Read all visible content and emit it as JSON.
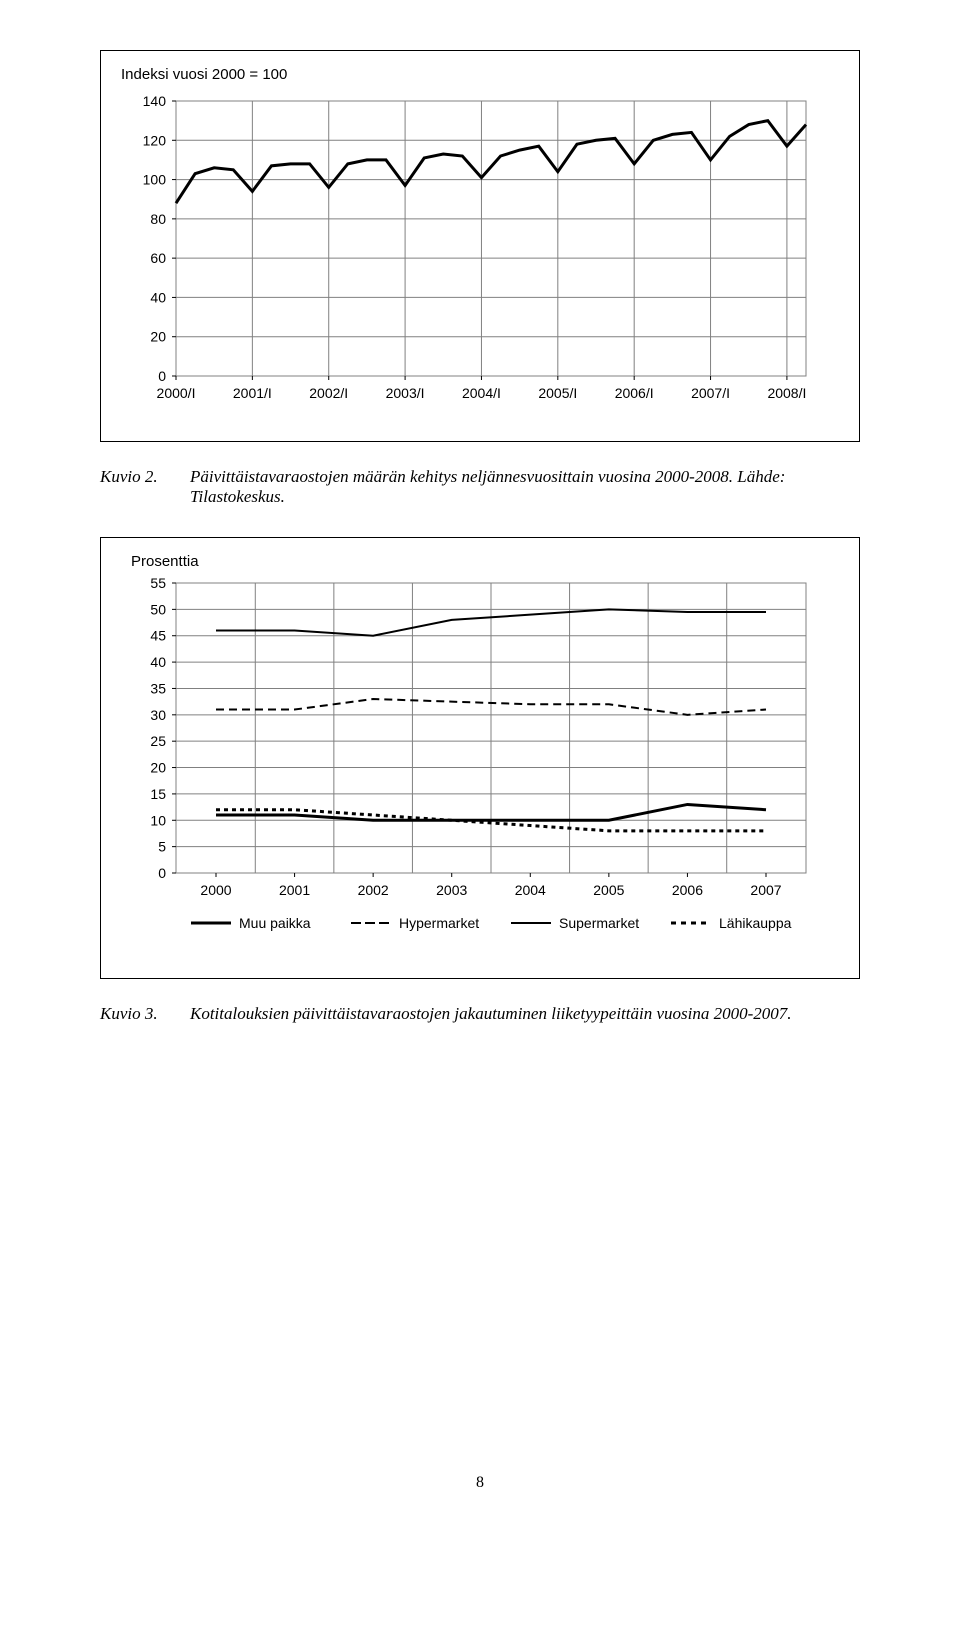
{
  "chart1": {
    "type": "line",
    "title": "Indeksi vuosi 2000 = 100",
    "title_fontsize": 15,
    "x_categories": [
      "2000/I",
      "2001/I",
      "2002/I",
      "2003/I",
      "2004/I",
      "2005/I",
      "2006/I",
      "2007/I",
      "2008/I"
    ],
    "series": [
      {
        "values": [
          88,
          103,
          106,
          105,
          94,
          107,
          108,
          108,
          96,
          108,
          110,
          110,
          97,
          111,
          113,
          112,
          101,
          112,
          115,
          117,
          104,
          118,
          120,
          121,
          108,
          120,
          123,
          124,
          110,
          122,
          128,
          130,
          117,
          128
        ],
        "color": "#000000",
        "line_width": 3
      }
    ],
    "y_ticks": [
      0,
      20,
      40,
      60,
      80,
      100,
      120,
      140
    ],
    "ylim": [
      0,
      140
    ],
    "background_color": "#ffffff",
    "grid_color": "#808080",
    "tick_fontsize": 14,
    "tick_font_family": "Arial"
  },
  "caption1": {
    "label": "Kuvio 2.",
    "text": "Päivittäistavaraostojen määrän kehitys neljännesvuosittain vuosina 2000-2008. Lähde: Tilastokeskus."
  },
  "chart2": {
    "type": "line",
    "title": "Prosenttia",
    "title_fontsize": 15,
    "x_categories": [
      "2000",
      "2001",
      "2002",
      "2003",
      "2004",
      "2005",
      "2006",
      "2007"
    ],
    "series": [
      {
        "name": "Muu paikka",
        "values": [
          11,
          11,
          10,
          10,
          10,
          10,
          13,
          12
        ],
        "color": "#000000",
        "line_width": 3,
        "dash": "none"
      },
      {
        "name": "Hypermarket",
        "values": [
          31,
          31,
          33,
          32.5,
          32,
          32,
          30,
          31
        ],
        "color": "#000000",
        "line_width": 2,
        "dash": "8,5"
      },
      {
        "name": "Supermarket",
        "values": [
          46,
          46,
          45,
          48,
          49,
          50,
          49.5,
          49.5
        ],
        "color": "#000000",
        "line_width": 2,
        "dash": "none"
      },
      {
        "name": "Lähikauppa",
        "values": [
          12,
          12,
          11,
          10,
          9,
          8,
          8,
          8
        ],
        "color": "#000000",
        "line_width": 3,
        "dash": "4,4"
      }
    ],
    "y_ticks": [
      0,
      5,
      10,
      15,
      20,
      25,
      30,
      35,
      40,
      45,
      50,
      55
    ],
    "ylim": [
      0,
      55
    ],
    "background_color": "#ffffff",
    "grid_color": "#808080",
    "tick_fontsize": 14,
    "tick_font_family": "Arial",
    "legend": {
      "items": [
        "Muu paikka",
        "Hypermarket",
        "Supermarket",
        "Lähikauppa"
      ],
      "dashes": [
        "none",
        "10,4",
        "none",
        "5,5"
      ],
      "widths": [
        3,
        2,
        2,
        3
      ]
    }
  },
  "caption2": {
    "label": "Kuvio 3.",
    "text": "Kotitalouksien päivittäistavaraostojen jakautuminen liiketyypeittäin vuosina 2000-2007."
  },
  "page_number": "8"
}
